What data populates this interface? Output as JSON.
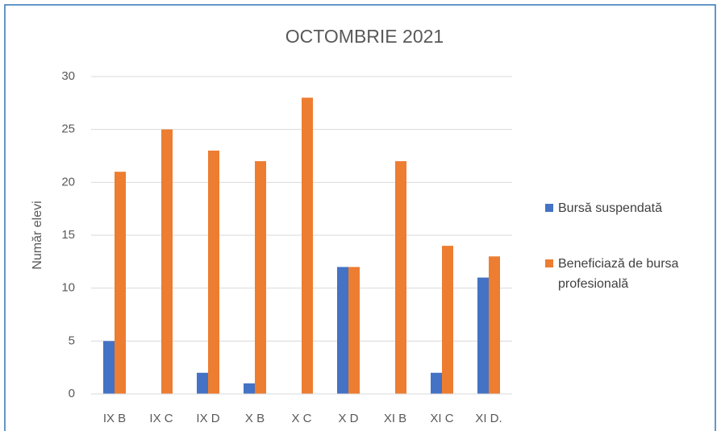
{
  "chart_data": {
    "type": "bar",
    "title": "OCTOMBRIE 2021",
    "y_label": "Număr elevi",
    "categories": [
      "IX B",
      "IX C",
      "IX D",
      "X B",
      "X C",
      "X D",
      "XI B",
      "XI C",
      "XI D."
    ],
    "series": [
      {
        "name": "Bursă suspendată",
        "color": "#4472c4",
        "values": [
          5,
          0,
          2,
          1,
          0,
          12,
          0,
          2,
          11
        ]
      },
      {
        "name": "Beneficiază de bursa profesională",
        "color": "#ed7d31",
        "values": [
          21,
          25,
          23,
          22,
          28,
          12,
          22,
          14,
          13
        ]
      }
    ],
    "ylim": [
      0,
      30
    ],
    "yticks": [
      0,
      5,
      10,
      15,
      20,
      25,
      30
    ],
    "grid": true,
    "legend": "right"
  }
}
